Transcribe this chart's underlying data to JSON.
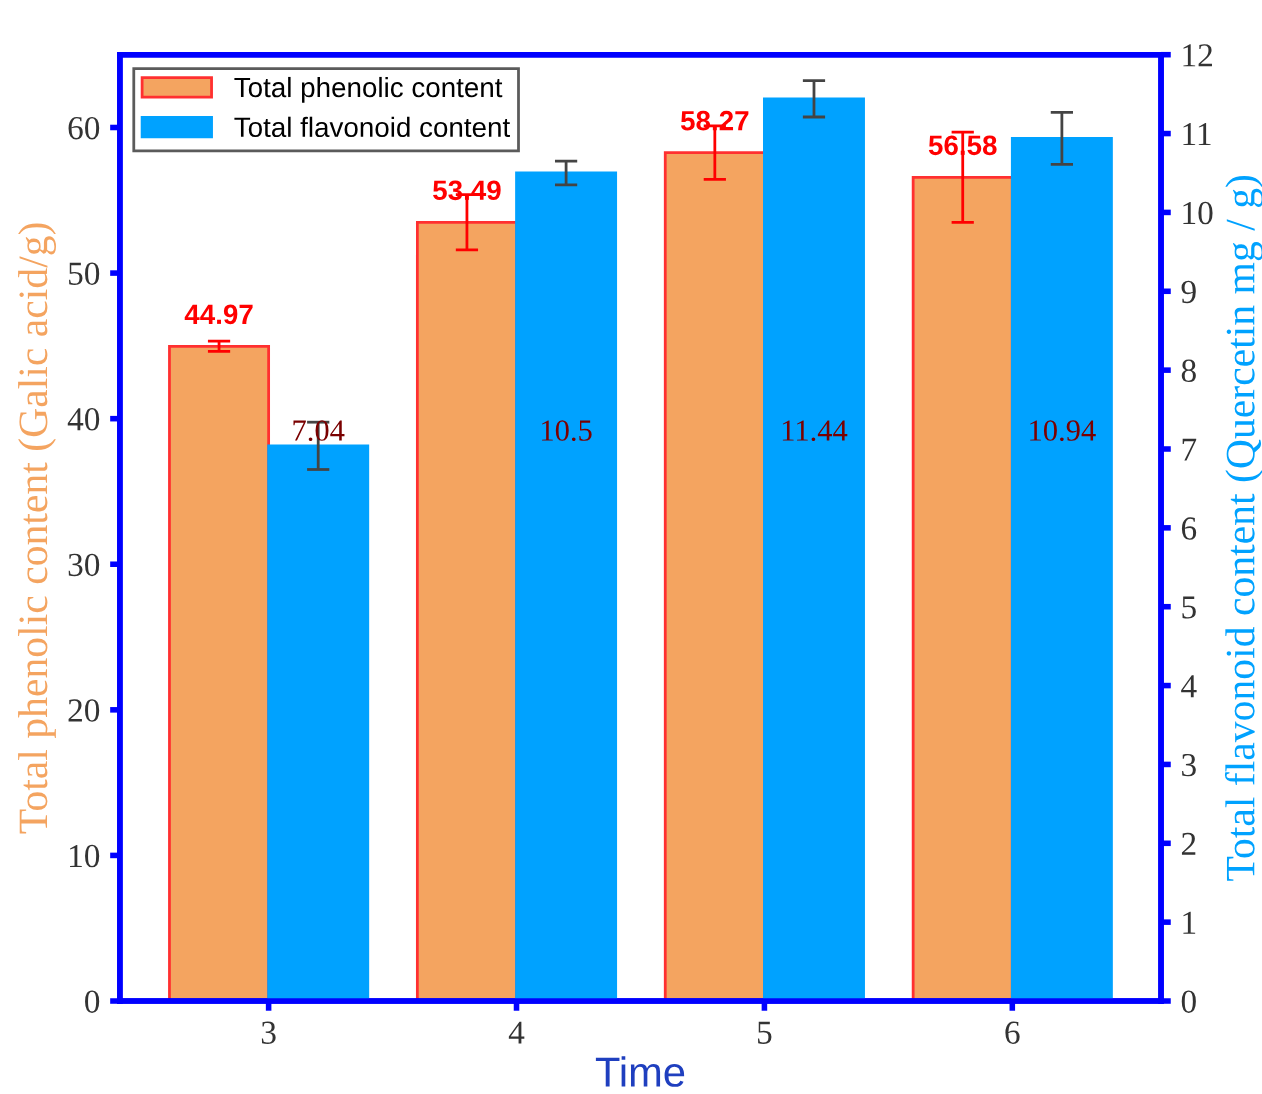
{
  "chart_data": {
    "type": "bar",
    "xlabel": "Time",
    "ylabel": "Total phenolic content (Galic acid/g)",
    "y2label": "Total flavonoid content (Quercetin mg / g)",
    "categories": [
      "3",
      "4",
      "5",
      "6"
    ],
    "series": [
      {
        "name": "Total phenolic content",
        "color": "#f4a460",
        "values": [
          44.97,
          53.49,
          58.27,
          56.58
        ],
        "errors": [
          0.35,
          1.9,
          1.84,
          3.1
        ],
        "value_labels": [
          "44.97",
          "53.49",
          "58.27",
          "56.58"
        ]
      },
      {
        "name": "Total flavonoid content",
        "color": "#00a2ff",
        "values": [
          7.04,
          10.5,
          11.44,
          10.94
        ],
        "errors": [
          0.3,
          0.15,
          0.23,
          0.33
        ],
        "axis": "y2",
        "value_labels": [
          "7.04",
          "10.5",
          "11.44",
          "10.94"
        ]
      }
    ],
    "ylim": [
      0,
      65
    ],
    "yticks": [
      0,
      10,
      20,
      30,
      40,
      50,
      60
    ],
    "y2lim": [
      0,
      12
    ],
    "y2ticks": [
      0,
      1,
      2,
      3,
      4,
      5,
      6,
      7,
      8,
      9,
      10,
      11,
      12
    ],
    "legend": "top left",
    "grid": false
  }
}
